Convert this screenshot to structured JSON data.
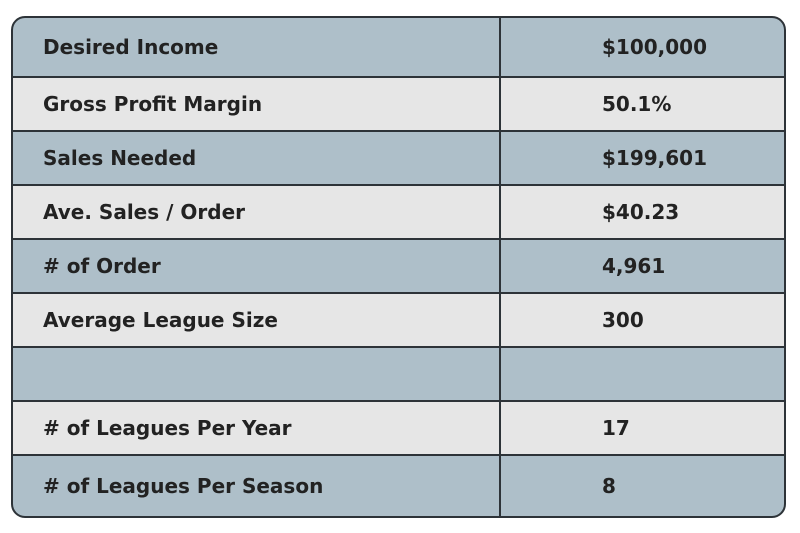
{
  "table": {
    "rows": [
      {
        "label": "Desired Income",
        "value": "$100,000"
      },
      {
        "label": "Gross Profit Margin",
        "value": "50.1%"
      },
      {
        "label": "Sales Needed",
        "value": "$199,601"
      },
      {
        "label": "Ave. Sales / Order",
        "value": "$40.23"
      },
      {
        "label": "# of Order",
        "value": "4,961"
      },
      {
        "label": "Average League Size",
        "value": "300"
      },
      {
        "label": "",
        "value": ""
      },
      {
        "label": "# of Leagues Per Year",
        "value": "17"
      },
      {
        "label": "# of Leagues Per Season",
        "value": "8"
      }
    ]
  },
  "colors": {
    "row_dark": "#aebfc9",
    "row_light": "#e6e6e6",
    "border": "#2d3338",
    "text": "#222222"
  }
}
